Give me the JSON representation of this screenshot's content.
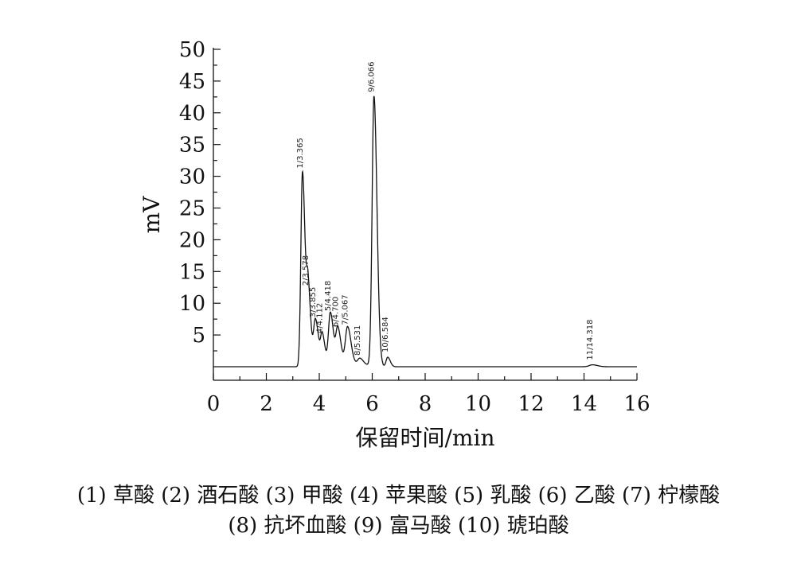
{
  "chart_data": {
    "type": "line",
    "title": "",
    "xlabel": "保留时间/min",
    "ylabel": "mV",
    "xlim": [
      0,
      16
    ],
    "ylim": [
      0,
      50
    ],
    "x_ticks": [
      "0",
      "2",
      "4",
      "6",
      "8",
      "10",
      "12",
      "14",
      "16"
    ],
    "y_ticks": [
      "5",
      "10",
      "15",
      "20",
      "25",
      "30",
      "35",
      "40",
      "45",
      "50"
    ],
    "grid": false,
    "peaks": [
      {
        "label": "1/3.365",
        "name": "(1) 草酸",
        "x": 3.365,
        "height": 30.5
      },
      {
        "label": "2/3.578",
        "name": "(2) 酒石酸",
        "x": 3.578,
        "height": 12.0
      },
      {
        "label": "3/3.855",
        "name": "(3) 甲酸",
        "x": 3.855,
        "height": 7.0
      },
      {
        "label": "4/4.112",
        "name": "(4) 苹果酸",
        "x": 4.112,
        "height": 4.5
      },
      {
        "label": "5/4.418",
        "name": "(5) 乳酸",
        "x": 4.418,
        "height": 8.0
      },
      {
        "label": "6/4.700",
        "name": "(6) 乙酸",
        "x": 4.7,
        "height": 5.5
      },
      {
        "label": "7/5.067",
        "name": "(7) 柠檬酸",
        "x": 5.067,
        "height": 5.8
      },
      {
        "label": "8/5.531",
        "name": "(8) 抗坏血酸",
        "x": 5.531,
        "height": 1.0
      },
      {
        "label": "9/6.066",
        "name": "(9) 富马酸",
        "x": 6.066,
        "height": 42.5
      },
      {
        "label": "10/6.584",
        "name": "(10) 琥珀酸",
        "x": 6.584,
        "height": 1.5
      },
      {
        "label": "11/14.318",
        "name": "",
        "x": 14.318,
        "height": 0.3
      }
    ]
  },
  "legend": {
    "line1": "(1) 草酸 (2) 酒石酸 (3) 甲酸 (4) 苹果酸 (5) 乳酸 (6) 乙酸 (7) 柠檬酸",
    "line2": "(8) 抗坏血酸 (9) 富马酸 (10) 琥珀酸"
  }
}
